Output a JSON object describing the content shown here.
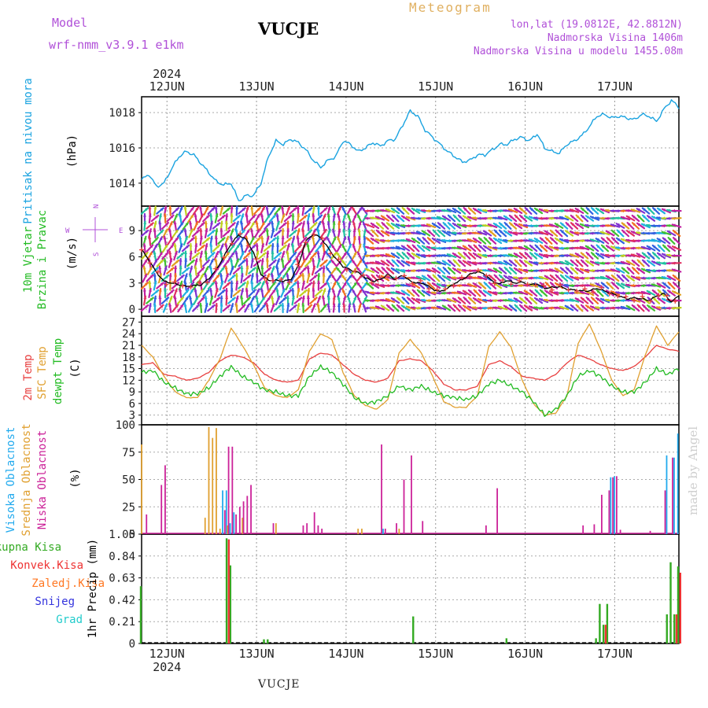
{
  "header": {
    "model_label": "Model",
    "model_name": "wrf-nmm_v3.9.1 e1km",
    "station": "VUCJE",
    "meteogram": "Meteogram",
    "lonlat": "lon,lat (19.0812E, 42.8812N)",
    "altitude": "Nadmorska Visina 1406m",
    "model_altitude": "Nadmorska Visina u modelu 1455.08m"
  },
  "year": "2024",
  "days": [
    "12JUN",
    "13JUN",
    "14JUN",
    "15JUN",
    "16JUN",
    "17JUN"
  ],
  "footer_station": "VUCJE",
  "credit": "made by Angel",
  "colors": {
    "pressure": "#1aa3e0",
    "temp2m": "#e84040",
    "sfc": "#e0a030",
    "dewpt": "#22bb22",
    "high_cloud": "#22aaee",
    "mid_cloud": "#e0a030",
    "low_cloud": "#cc2299",
    "total_precip": "#33aa22",
    "conv_precip": "#ee3333",
    "frz_precip": "#ff7722",
    "snow": "#3333dd",
    "hail": "#22cccc"
  },
  "chart_data": [
    {
      "type": "line",
      "panel": "pressure",
      "ylabel_left": "Pritisak na nivou mora",
      "ylabel_unit": "(hPa)",
      "yticks": [
        "1014",
        "1016",
        "1018"
      ],
      "ylim": [
        1012.7,
        1018.9
      ],
      "x_hours_range": [
        0,
        144
      ],
      "series": [
        {
          "x": [
            0,
            2,
            4,
            6,
            8,
            10,
            12,
            14,
            16,
            18,
            20,
            22,
            24,
            26,
            28,
            30,
            32,
            34,
            36,
            38,
            40,
            42,
            44,
            46,
            48,
            50,
            52,
            54,
            56,
            58,
            60,
            62,
            64,
            66,
            68,
            70,
            72,
            74,
            76,
            78,
            80,
            82,
            84,
            86,
            88,
            90,
            92,
            94,
            96,
            98,
            100,
            102,
            104,
            106,
            108,
            110,
            112,
            114,
            116,
            118,
            120,
            122,
            124,
            126,
            128,
            130,
            132,
            134,
            136,
            138,
            140,
            142,
            144
          ],
          "y": [
            1014.2,
            1014.5,
            1013.8,
            1014.0,
            1014.8,
            1015.5,
            1015.8,
            1015.6,
            1015.1,
            1014.6,
            1014.1,
            1013.9,
            1014.0,
            1013.0,
            1013.3,
            1013.3,
            1014.0,
            1015.5,
            1016.4,
            1016.2,
            1016.5,
            1016.3,
            1015.9,
            1015.3,
            1014.9,
            1015.3,
            1015.5,
            1016.4,
            1016.2,
            1015.8,
            1016.0,
            1016.3,
            1016.1,
            1016.4,
            1016.5,
            1017.3,
            1018.1,
            1017.8,
            1017.0,
            1016.6,
            1016.2,
            1015.8,
            1015.5,
            1015.2,
            1015.3,
            1015.6,
            1015.6,
            1015.9,
            1016.2,
            1016.2,
            1016.5,
            1016.6,
            1016.4,
            1016.8,
            1016.0,
            1015.8,
            1015.7,
            1016.2,
            1016.4,
            1016.7,
            1017.2,
            1017.8,
            1017.9,
            1017.7,
            1017.8,
            1017.7,
            1017.6,
            1017.9,
            1017.8,
            1017.5,
            1018.2,
            1018.7,
            1018.3
          ]
        }
      ]
    },
    {
      "type": "line",
      "panel": "wind",
      "ylabel_left": [
        "10m Vjetar",
        "Brzina i Pravac"
      ],
      "ylabel_unit": "(m/s)",
      "compass": [
        "N",
        "E",
        "S",
        "W"
      ],
      "yticks": [
        "0",
        "3",
        "6",
        "9"
      ],
      "ylim": [
        -0.8,
        11.8
      ],
      "series": [
        {
          "name": "speed",
          "x": [
            0,
            2,
            4,
            6,
            8,
            10,
            12,
            14,
            16,
            18,
            20,
            22,
            24,
            26,
            28,
            30,
            32,
            34,
            36,
            38,
            40,
            42,
            44,
            46,
            48,
            50,
            52,
            54,
            56,
            58,
            60,
            62,
            64,
            66,
            68,
            70,
            72,
            74,
            76,
            78,
            80,
            82,
            84,
            86,
            88,
            90,
            92,
            94,
            96,
            98,
            100,
            102,
            104,
            106,
            108,
            110,
            112,
            114,
            116,
            118,
            120,
            122,
            124,
            126,
            128,
            130,
            132,
            134,
            136,
            138,
            140,
            142,
            144
          ],
          "y": [
            6.8,
            5.6,
            4.2,
            3.2,
            3.0,
            2.8,
            2.6,
            2.7,
            2.8,
            3.5,
            4.5,
            6.0,
            7.5,
            8.5,
            8.0,
            6.5,
            4.0,
            3.3,
            3.3,
            3.2,
            3.4,
            5.0,
            7.8,
            8.6,
            8.2,
            7.0,
            5.8,
            4.9,
            4.5,
            4.2,
            3.6,
            3.2,
            3.4,
            4.0,
            3.4,
            3.9,
            3.2,
            3.0,
            2.9,
            2.3,
            2.0,
            2.4,
            3.0,
            3.4,
            4.0,
            4.3,
            4.0,
            3.2,
            2.9,
            3.3,
            3.0,
            3.1,
            2.8,
            2.9,
            2.4,
            2.5,
            2.6,
            2.3,
            2.2,
            2.1,
            2.1,
            2.4,
            2.1,
            1.8,
            1.5,
            1.2,
            1.3,
            1.2,
            1.0,
            1.5,
            1.8,
            0.8,
            1.6
          ]
        }
      ]
    },
    {
      "type": "line",
      "panel": "temperature",
      "ylabel_left": [
        "2m Temp",
        "SFC Temp",
        "dewpt Temp"
      ],
      "ylabel_unit": "(C)",
      "yticks": [
        "3",
        "6",
        "9",
        "12",
        "15",
        "18",
        "21",
        "24",
        "27"
      ],
      "ylim": [
        0.5,
        28.5
      ],
      "series": [
        {
          "name": "2m Temp",
          "x": [
            0,
            3,
            6,
            9,
            12,
            15,
            18,
            21,
            24,
            27,
            30,
            33,
            36,
            39,
            42,
            45,
            48,
            51,
            54,
            57,
            60,
            63,
            66,
            69,
            72,
            75,
            78,
            81,
            84,
            87,
            90,
            93,
            96,
            99,
            102,
            105,
            108,
            111,
            114,
            117,
            120,
            123,
            126,
            129,
            132,
            135,
            138,
            141,
            144
          ],
          "y": [
            16.0,
            16.5,
            13.5,
            13.0,
            12.0,
            12.5,
            14.0,
            17.0,
            18.5,
            18.0,
            16.5,
            13.5,
            12.0,
            11.5,
            12.0,
            17.5,
            19.0,
            18.5,
            16.0,
            13.5,
            12.0,
            11.5,
            12.5,
            17.0,
            17.5,
            17.0,
            14.5,
            11.0,
            9.5,
            9.5,
            10.5,
            16.0,
            17.0,
            15.5,
            13.0,
            12.5,
            12.0,
            13.5,
            16.5,
            18.5,
            17.5,
            16.0,
            15.0,
            14.5,
            15.5,
            18.0,
            21.0,
            20.0,
            19.5
          ]
        },
        {
          "name": "SFC Temp",
          "x": [
            0,
            3,
            6,
            9,
            12,
            15,
            18,
            21,
            24,
            27,
            30,
            33,
            36,
            39,
            42,
            45,
            48,
            51,
            54,
            57,
            60,
            63,
            66,
            69,
            72,
            75,
            78,
            81,
            84,
            87,
            90,
            93,
            96,
            99,
            102,
            105,
            108,
            111,
            114,
            117,
            120,
            123,
            126,
            129,
            132,
            135,
            138,
            141,
            144
          ],
          "y": [
            21.0,
            18.0,
            13.0,
            9.0,
            7.5,
            7.5,
            12.0,
            17.5,
            25.5,
            21.0,
            16.0,
            10.0,
            8.0,
            7.5,
            9.5,
            19.5,
            24.0,
            22.5,
            14.0,
            8.0,
            5.5,
            4.5,
            7.0,
            19.0,
            22.5,
            19.0,
            13.0,
            6.5,
            5.0,
            5.0,
            8.0,
            20.5,
            24.5,
            20.5,
            12.0,
            6.0,
            3.0,
            3.5,
            8.0,
            21.5,
            26.5,
            20.0,
            12.0,
            8.0,
            9.5,
            18.5,
            26.0,
            21.0,
            24.5
          ]
        },
        {
          "name": "dewpt Temp",
          "x": [
            0,
            3,
            6,
            9,
            12,
            15,
            18,
            21,
            24,
            27,
            30,
            33,
            36,
            39,
            42,
            45,
            48,
            51,
            54,
            57,
            60,
            63,
            66,
            69,
            72,
            75,
            78,
            81,
            84,
            87,
            90,
            93,
            96,
            99,
            102,
            105,
            108,
            111,
            114,
            117,
            120,
            123,
            126,
            129,
            132,
            135,
            138,
            141,
            144
          ],
          "y": [
            14.0,
            14.5,
            11.5,
            10.0,
            8.5,
            8.5,
            10.0,
            13.0,
            15.5,
            13.0,
            11.5,
            9.5,
            9.0,
            8.0,
            8.0,
            13.0,
            15.5,
            14.0,
            11.0,
            7.5,
            6.0,
            6.5,
            8.0,
            10.5,
            9.5,
            10.5,
            9.0,
            8.0,
            7.5,
            7.0,
            8.0,
            11.0,
            12.0,
            10.5,
            9.0,
            6.5,
            3.0,
            4.5,
            8.0,
            13.0,
            14.5,
            13.0,
            10.5,
            9.0,
            9.0,
            11.5,
            15.0,
            13.5,
            15.0
          ]
        }
      ]
    },
    {
      "type": "bar",
      "panel": "clouds",
      "ylabel_left": [
        "Visoka Oblacnost",
        "Srednja Oblacnost",
        "Niska Oblacnost"
      ],
      "ylabel_unit": "(%)",
      "yticks": [
        "0",
        "25",
        "50",
        "75",
        "100"
      ],
      "ylim": [
        0,
        100
      ],
      "series": [
        {
          "name": "Visoka Oblacnost",
          "x": [
            22,
            23,
            24,
            25,
            65,
            126,
            127,
            141,
            143,
            144
          ],
          "y": [
            40,
            40,
            10,
            20,
            5,
            52,
            53,
            72,
            70,
            92
          ]
        },
        {
          "name": "Srednja Oblacnost",
          "x": [
            0,
            17,
            18,
            19,
            20,
            21,
            23,
            27,
            36,
            58,
            59,
            69
          ],
          "y": [
            82,
            15,
            98,
            88,
            97,
            5,
            8,
            15,
            10,
            5,
            5,
            5
          ]
        },
        {
          "name": "Niska Oblacnost",
          "x": [
            1,
            5,
            6,
            22,
            23,
            24,
            25,
            26,
            27,
            28,
            29,
            35,
            43,
            44,
            46,
            47,
            48,
            64,
            65,
            68,
            70,
            72,
            75,
            92,
            95,
            118,
            121,
            123,
            125,
            126,
            127,
            128,
            136,
            140,
            142
          ],
          "y": [
            18,
            45,
            63,
            22,
            80,
            80,
            18,
            25,
            30,
            35,
            45,
            10,
            8,
            10,
            20,
            8,
            5,
            82,
            5,
            10,
            50,
            72,
            12,
            8,
            42,
            8,
            9,
            36,
            40,
            52,
            53,
            4,
            3,
            40,
            70
          ]
        }
      ]
    },
    {
      "type": "bar",
      "panel": "precipitation",
      "ylabel_left": [
        "Ukupna Kisa",
        "Konvek.Kisa",
        "Zaledj.Kisa",
        "Snijeg",
        "Grad"
      ],
      "ylabel_unit": "1hr Precip (mm)",
      "yticks": [
        "0",
        "0.21",
        "0.42",
        "0.63",
        "0.84",
        "1.05"
      ],
      "ylim": [
        0,
        1.05
      ],
      "series": [
        {
          "name": "Ukupna Kisa",
          "x": [
            0,
            23,
            24,
            33,
            34,
            73,
            98,
            122,
            123,
            124,
            125,
            141,
            142,
            143,
            144
          ],
          "y": [
            0.55,
            1.01,
            0.75,
            0.04,
            0.04,
            0.26,
            0.05,
            0.05,
            0.38,
            0.18,
            0.38,
            0.28,
            0.78,
            0.28,
            0.74
          ]
        },
        {
          "name": "Konvek.Kisa",
          "x": [
            23,
            124,
            143,
            144
          ],
          "y": [
            1.0,
            0.18,
            0.28,
            0.68
          ]
        }
      ]
    }
  ]
}
